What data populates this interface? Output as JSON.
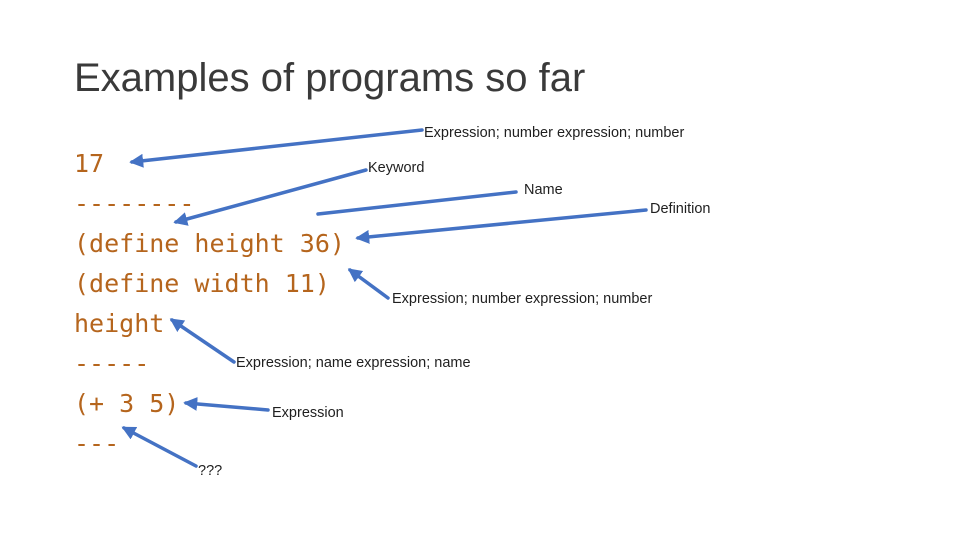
{
  "title": "Examples of programs so far",
  "code_lines": [
    "17",
    "--------",
    "(define height 36)",
    "(define width 11)",
    "height",
    "-----",
    "(+ 3 5)",
    "---"
  ],
  "annotations": {
    "expr_number_1": "Expression; number expression; number",
    "keyword": "Keyword",
    "name": "Name",
    "definition": "Definition",
    "expr_number_2": "Expression; number expression; number",
    "expr_name": "Expression; name expression; name",
    "expression": "Expression",
    "unknown": "???"
  },
  "colors": {
    "code": "#b5651d",
    "arrow": "#4472c4",
    "title": "#3a3a3a"
  }
}
